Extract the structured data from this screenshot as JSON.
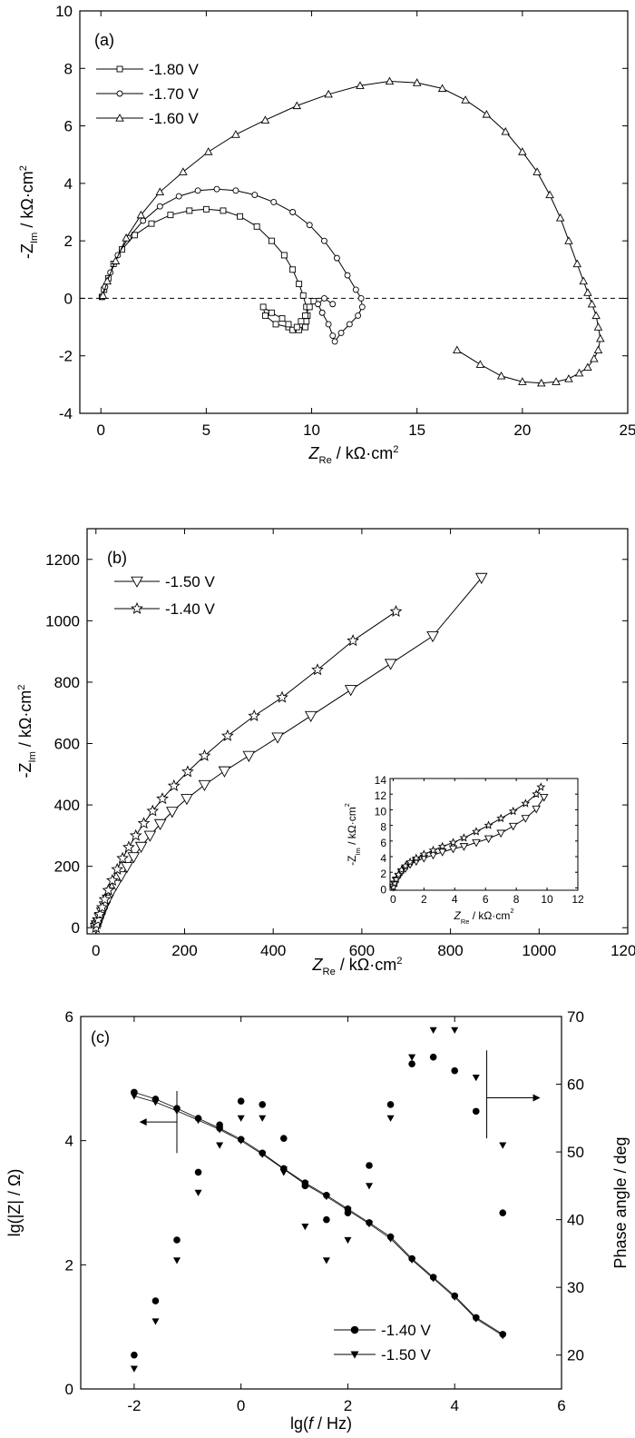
{
  "chart_data": [
    {
      "type": "scatter",
      "panel_label": "(a)",
      "xlabel": {
        "symbol": "Z",
        "sub": "Re",
        "unit": " / kΩ·cm",
        "sup": "2"
      },
      "ylabel": {
        "symbol": "-Z",
        "sub": "Im",
        "unit": " / kΩ·cm",
        "sup": "2"
      },
      "xlim": [
        -1,
        25
      ],
      "ylim": [
        -4,
        10
      ],
      "xticks": [
        "0",
        "5",
        "10",
        "15",
        "20",
        "25"
      ],
      "yticks": [
        "-4",
        "-2",
        "0",
        "2",
        "4",
        "6",
        "8",
        "10"
      ],
      "zero_line": true,
      "legend_position": "top-left",
      "series": [
        {
          "name": "-1.80 V",
          "marker": "square",
          "x": [
            0.05,
            0.15,
            0.35,
            0.6,
            1.0,
            1.6,
            2.4,
            3.3,
            4.2,
            5.0,
            5.8,
            6.6,
            7.4,
            8.1,
            8.7,
            9.1,
            9.4,
            9.6,
            9.75,
            9.8,
            9.75,
            9.7,
            9.4,
            8.9,
            8.3,
            7.8,
            7.7,
            8.1,
            8.6,
            8.9,
            9.1,
            9.3,
            9.5,
            9.7,
            9.9,
            10.1
          ],
          "y": [
            0.05,
            0.3,
            0.7,
            1.2,
            1.7,
            2.2,
            2.6,
            2.9,
            3.05,
            3.1,
            3.05,
            2.85,
            2.5,
            2.0,
            1.5,
            1.0,
            0.5,
            0.1,
            -0.3,
            -0.6,
            -0.8,
            -1.0,
            -1.1,
            -1.0,
            -0.9,
            -0.6,
            -0.3,
            -0.5,
            -0.7,
            -0.9,
            -1.1,
            -1.0,
            -0.8,
            -0.6,
            -0.3,
            -0.1
          ]
        },
        {
          "name": "-1.70 V",
          "marker": "circle",
          "x": [
            0.05,
            0.2,
            0.45,
            0.8,
            1.3,
            2.0,
            2.8,
            3.7,
            4.6,
            5.5,
            6.4,
            7.3,
            8.2,
            9.1,
            9.9,
            10.6,
            11.2,
            11.7,
            12.1,
            12.35,
            12.4,
            12.2,
            11.8,
            11.4,
            11.1,
            11.0,
            10.8,
            10.5,
            10.3,
            10.6,
            11.0
          ],
          "y": [
            0.05,
            0.4,
            0.9,
            1.5,
            2.1,
            2.7,
            3.2,
            3.55,
            3.75,
            3.8,
            3.75,
            3.6,
            3.35,
            3.0,
            2.55,
            2.0,
            1.4,
            0.8,
            0.3,
            0.0,
            -0.3,
            -0.6,
            -0.9,
            -1.2,
            -1.5,
            -1.3,
            -0.9,
            -0.5,
            -0.2,
            0.0,
            -0.2
          ]
        },
        {
          "name": "-1.60 V",
          "marker": "triangle-up",
          "x": [
            0.1,
            0.3,
            0.7,
            1.2,
            1.9,
            2.8,
            3.9,
            5.1,
            6.4,
            7.8,
            9.3,
            10.8,
            12.3,
            13.7,
            15.0,
            16.2,
            17.3,
            18.3,
            19.2,
            20.0,
            20.7,
            21.3,
            21.8,
            22.2,
            22.6,
            22.9,
            23.1,
            23.3,
            23.5,
            23.6,
            23.7,
            23.6,
            23.4,
            23.1,
            22.7,
            22.2,
            21.6,
            20.9,
            20.0,
            19.0,
            18.0,
            16.9
          ],
          "y": [
            0.1,
            0.6,
            1.3,
            2.1,
            2.9,
            3.7,
            4.4,
            5.1,
            5.7,
            6.2,
            6.7,
            7.1,
            7.4,
            7.55,
            7.5,
            7.3,
            6.9,
            6.4,
            5.8,
            5.1,
            4.4,
            3.6,
            2.8,
            2.0,
            1.2,
            0.6,
            0.2,
            -0.2,
            -0.6,
            -1.0,
            -1.4,
            -1.8,
            -2.1,
            -2.4,
            -2.6,
            -2.8,
            -2.9,
            -2.95,
            -2.9,
            -2.7,
            -2.3,
            -1.8
          ]
        }
      ]
    },
    {
      "type": "line",
      "panel_label": "(b)",
      "xlabel": {
        "symbol": "Z",
        "sub": "Re",
        "unit": " / kΩ·cm",
        "sup": "2"
      },
      "ylabel": {
        "symbol": "-Z",
        "sub": "Im",
        "unit": " / kΩ·cm",
        "sup": "2"
      },
      "xlim": [
        -20,
        1200
      ],
      "ylim": [
        -20,
        1300
      ],
      "xticks": [
        "0",
        "200",
        "400",
        "600",
        "800",
        "1000",
        "1200"
      ],
      "yticks": [
        "0",
        "200",
        "400",
        "600",
        "800",
        "1000",
        "1200"
      ],
      "legend_position": "top-left",
      "series": [
        {
          "name": "-1.50 V",
          "marker": "triangle-down",
          "x": [
            0,
            2,
            5,
            9,
            14,
            20,
            27,
            35,
            45,
            57,
            70,
            85,
            102,
            122,
            145,
            172,
            205,
            245,
            290,
            345,
            410,
            485,
            575,
            665,
            760,
            870
          ],
          "y": [
            0,
            8,
            18,
            32,
            50,
            70,
            92,
            115,
            140,
            168,
            198,
            230,
            264,
            300,
            338,
            378,
            420,
            465,
            510,
            560,
            620,
            690,
            775,
            860,
            950,
            1140
          ]
        },
        {
          "name": "-1.40 V",
          "marker": "star",
          "x": [
            0,
            2,
            5,
            9,
            14,
            20,
            28,
            37,
            48,
            60,
            74,
            90,
            108,
            128,
            150,
            176,
            207,
            245,
            297,
            357,
            420,
            500,
            580,
            677
          ],
          "y": [
            0,
            12,
            26,
            44,
            66,
            92,
            122,
            154,
            190,
            226,
            262,
            300,
            340,
            380,
            420,
            462,
            508,
            560,
            625,
            690,
            750,
            840,
            935,
            1030
          ]
        }
      ],
      "inset": {
        "xlabel": {
          "symbol": "Z",
          "sub": "Re",
          "unit": " / kΩ·cm",
          "sup": "2"
        },
        "ylabel": {
          "symbol": "-Z",
          "sub": "Im",
          "unit": " / kΩ·cm",
          "sup": "2"
        },
        "xlim": [
          -0.2,
          12
        ],
        "ylim": [
          -0.3,
          14
        ],
        "xticks": [
          "0",
          "2",
          "4",
          "6",
          "8",
          "10",
          "12"
        ],
        "yticks": [
          "0",
          "2",
          "4",
          "6",
          "8",
          "10",
          "12",
          "14"
        ],
        "series": [
          {
            "name": "-1.50 V",
            "marker": "triangle-down",
            "x": [
              0.02,
              0.1,
              0.2,
              0.35,
              0.55,
              0.8,
              1.1,
              1.5,
              2.0,
              2.6,
              3.2,
              3.9,
              4.6,
              5.4,
              6.2,
              7.0,
              7.8,
              8.6,
              9.3,
              9.8
            ],
            "y": [
              0.1,
              0.5,
              1.0,
              1.5,
              2.0,
              2.5,
              3.0,
              3.4,
              3.8,
              4.2,
              4.6,
              5.0,
              5.3,
              5.8,
              6.3,
              7.0,
              7.9,
              8.9,
              10.1,
              11.6
            ]
          },
          {
            "name": "-1.40 V",
            "marker": "star",
            "x": [
              0.02,
              0.1,
              0.2,
              0.35,
              0.55,
              0.8,
              1.1,
              1.5,
              2.0,
              2.6,
              3.2,
              3.9,
              4.6,
              5.4,
              6.2,
              7.0,
              7.8,
              8.6,
              9.3,
              9.6
            ],
            "y": [
              0.1,
              0.6,
              1.1,
              1.7,
              2.3,
              2.8,
              3.3,
              3.8,
              4.3,
              4.8,
              5.3,
              5.8,
              6.4,
              7.2,
              8.0,
              8.9,
              9.8,
              10.8,
              12.0,
              12.9
            ]
          }
        ]
      }
    },
    {
      "type": "scatter",
      "panel_label": "(c)",
      "xlabel": {
        "pre": "lg(",
        "ital": "f",
        "post": " / Hz)"
      },
      "ylabel_left": "lg(|Z| / Ω)",
      "ylabel_right": "Phase angle / deg",
      "xlim": [
        -3,
        6
      ],
      "ylim_left": [
        0,
        6
      ],
      "ylim_right": [
        15,
        70
      ],
      "xticks": [
        "-2",
        "0",
        "2",
        "4",
        "6"
      ],
      "yticks_left": [
        "0",
        "2",
        "4",
        "6"
      ],
      "yticks_right": [
        "20",
        "30",
        "40",
        "50",
        "60",
        "70"
      ],
      "legend_position": "bottom-right",
      "arrows": [
        "left",
        "right"
      ],
      "series": [
        {
          "name": "-1.40 V",
          "marker": "circle-filled",
          "x": [
            -2.0,
            -1.6,
            -1.2,
            -0.8,
            -0.4,
            0.0,
            0.4,
            0.8,
            1.2,
            1.6,
            2.0,
            2.4,
            2.8,
            3.2,
            3.6,
            4.0,
            4.4,
            4.9
          ],
          "lgZ": [
            4.78,
            4.67,
            4.52,
            4.36,
            4.2,
            4.02,
            3.8,
            3.55,
            3.32,
            3.12,
            2.9,
            2.68,
            2.45,
            2.1,
            1.8,
            1.5,
            1.15,
            0.88
          ],
          "phase": [
            20,
            28,
            37,
            47,
            54,
            57.5,
            57,
            52,
            45,
            40,
            41,
            48,
            57,
            63,
            64,
            62,
            56,
            41
          ]
        },
        {
          "name": "-1.50 V",
          "marker": "triangle-down-filled",
          "x": [
            -2.0,
            -1.6,
            -1.2,
            -0.8,
            -0.4,
            0.0,
            0.4,
            0.8,
            1.2,
            1.6,
            2.0,
            2.4,
            2.8,
            3.2,
            3.6,
            4.0,
            4.4,
            4.9
          ],
          "lgZ": [
            4.72,
            4.62,
            4.48,
            4.33,
            4.18,
            4.0,
            3.78,
            3.54,
            3.3,
            3.1,
            2.88,
            2.66,
            2.42,
            2.08,
            1.78,
            1.48,
            1.13,
            0.86
          ],
          "phase": [
            18,
            25,
            34,
            44,
            51,
            55,
            55,
            47,
            39,
            34,
            37,
            45,
            55,
            64,
            68,
            68,
            61,
            51
          ]
        }
      ]
    }
  ]
}
